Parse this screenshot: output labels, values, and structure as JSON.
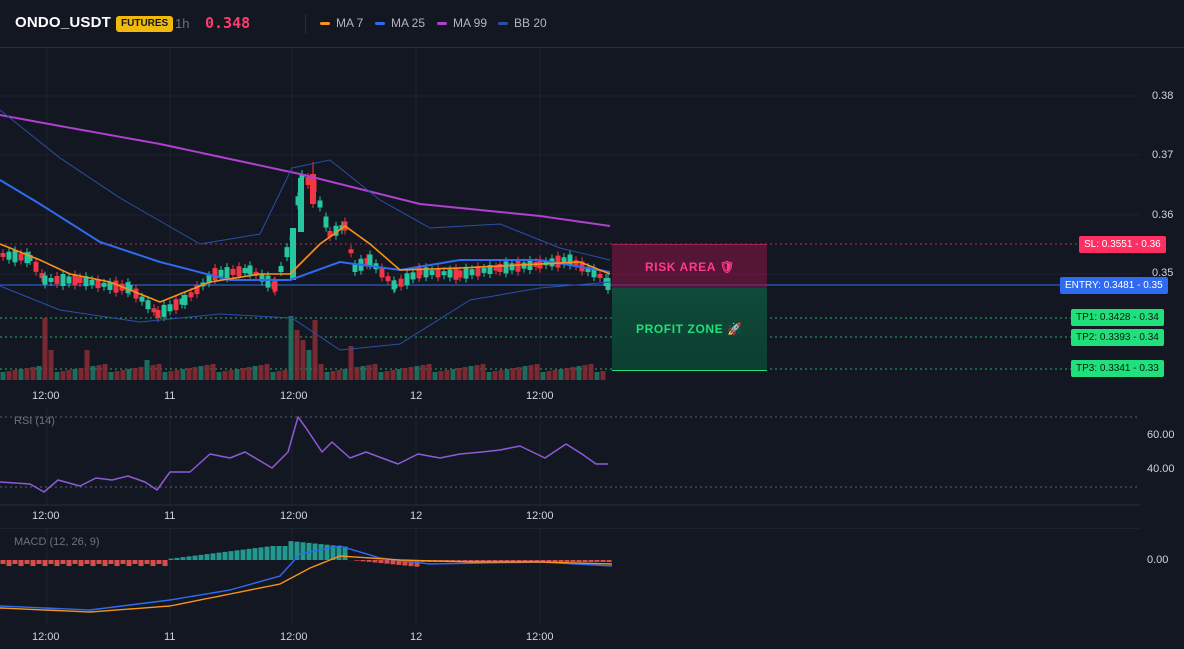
{
  "header": {
    "symbol": "ONDO_USDT",
    "badge": "FUTURES",
    "timeframe": "1h",
    "price": "0.348"
  },
  "legend": [
    {
      "label": "MA 7",
      "color": "#f7931a"
    },
    {
      "label": "MA 25",
      "color": "#2f6bf0"
    },
    {
      "label": "MA 99",
      "color": "#b040d0"
    },
    {
      "label": "BB 20",
      "color": "#2a4fa8"
    }
  ],
  "price_axis": [
    "0.38",
    "0.37",
    "0.36",
    "0.35"
  ],
  "time_axis": [
    "12:00",
    "11",
    "12:00",
    "12",
    "12:00"
  ],
  "rsi": {
    "title": "RSI (14)",
    "axis": [
      "60.00",
      "40.00"
    ]
  },
  "macd": {
    "title": "MACD (12, 26, 9)",
    "axis": [
      "0.00"
    ]
  },
  "tags": {
    "sl": "SL: 0.3551 - 0.36",
    "entry": "ENTRY: 0.3481 - 0.35",
    "tp1": "TP1: 0.3428 - 0.34",
    "tp2": "TP2: 0.3393 - 0.34",
    "tp3": "TP3: 0.3341 - 0.33"
  },
  "zones": {
    "risk": "RISK AREA 🛡",
    "profit": "PROFIT ZONE 🚀"
  },
  "colors": {
    "up": "#26c6a0",
    "down": "#f23645",
    "ma7": "#f7931a",
    "ma25": "#2f6bf0",
    "ma99": "#b040d0",
    "bb": "#2a4fa8",
    "rsi": "#8d5bd6",
    "sl": "#ff3b6b",
    "entry": "#2f6bf0",
    "tp": "#1fe07a"
  }
}
